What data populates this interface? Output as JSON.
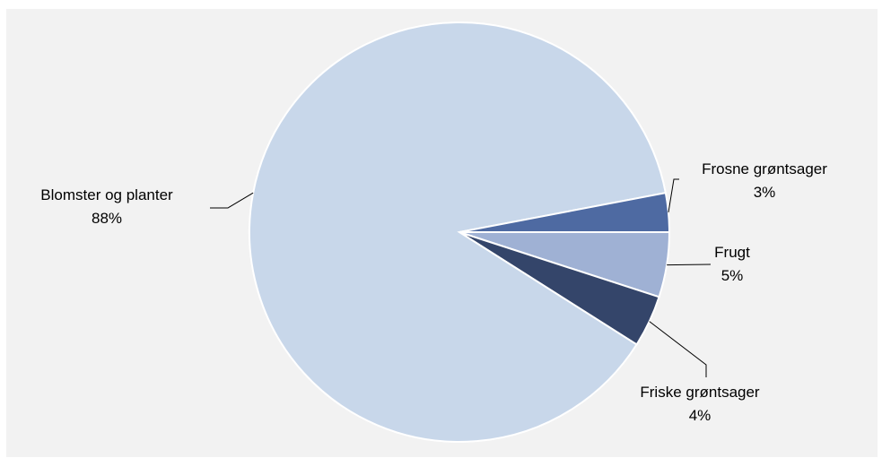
{
  "chart_data": {
    "type": "pie",
    "title": "",
    "start_angle_deg": 0,
    "direction": "clockwise-from-3-oclock",
    "slices": [
      {
        "name": "Frugt",
        "value": 5,
        "label": "5%",
        "color": "#9fb1d4"
      },
      {
        "name": "Friske grøntsager",
        "value": 4,
        "label": "4%",
        "color": "#34456a"
      },
      {
        "name": "Blomster og planter",
        "value": 88,
        "label": "88%",
        "color": "#c8d7ea"
      },
      {
        "name": "Frosne grøntsager",
        "value": 3,
        "label": "3%",
        "color": "#4e6aa2"
      }
    ],
    "legend": "none",
    "data_labels": "outside-with-leader-lines"
  }
}
